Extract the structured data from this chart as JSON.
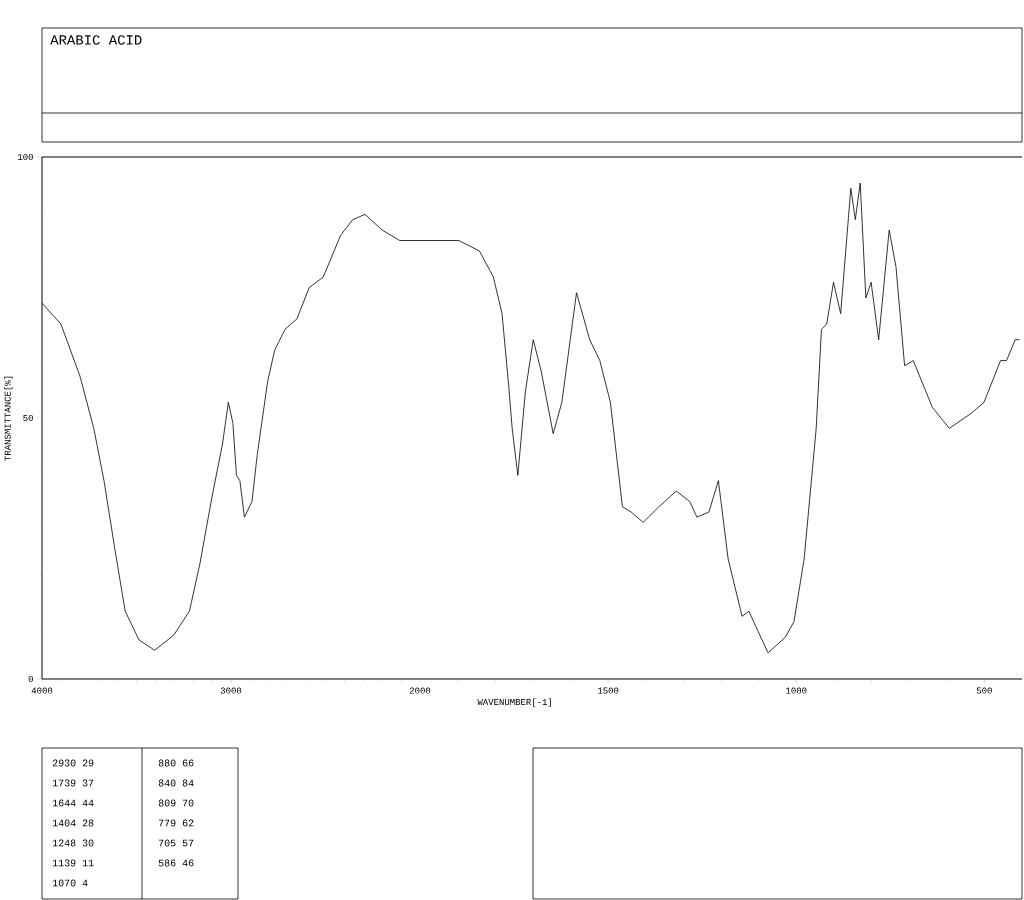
{
  "chart_data": [
    {
      "type": "line",
      "title": "ARABIC ACID",
      "ylabel": "TRANSMITTANCE[%]",
      "x": [
        4000,
        3900,
        3799,
        3726,
        3672,
        3615,
        3560,
        3487,
        3404,
        3303,
        3220,
        3165,
        3100,
        3045,
        3014,
        2990,
        2971,
        2953,
        2929,
        2889,
        2861,
        2806,
        2769,
        2714,
        2651,
        2586,
        2512,
        2420,
        2356,
        2291,
        2200,
        2107,
        2043,
        2000
      ],
      "series": [
        {
          "color": "#000000",
          "values": [
            72,
            68,
            58,
            48,
            38,
            25,
            13,
            7.5,
            5.5,
            8.4,
            13,
            22,
            35,
            45,
            53,
            49,
            39,
            38,
            31,
            34,
            43,
            57,
            63,
            67,
            69,
            75,
            77,
            85,
            88,
            89,
            86,
            84,
            84,
            84
          ]
        }
      ],
      "xlim": [
        4000,
        2000
      ],
      "ylim": [
        0,
        100
      ],
      "xticks": [
        4000,
        3000,
        2000
      ],
      "yticks": [
        0,
        50,
        100
      ],
      "marker": "none",
      "line_style": "solid",
      "annotations": [
        "2930 29",
        "1739 37",
        "1644 44",
        "1404 28",
        "1248 30",
        "1139 11",
        "1070 4",
        "880 66",
        "840 84",
        "809 70",
        "779 62",
        "705 57",
        "586 46"
      ]
    },
    {
      "type": "line",
      "xlabel": "WAVENUMBER[-1]",
      "x": [
        2000,
        1989,
        1897,
        1842,
        1805,
        1782,
        1764,
        1755,
        1740,
        1720,
        1699,
        1678,
        1646,
        1623,
        1584,
        1549,
        1522,
        1494,
        1462,
        1439,
        1407,
        1365,
        1319,
        1283,
        1264,
        1232,
        1207,
        1181,
        1144,
        1126,
        1107,
        1075,
        1029,
        1006,
        979,
        947,
        933,
        919,
        901,
        882,
        855,
        843,
        830,
        815,
        801,
        781,
        753,
        735,
        712,
        689,
        638,
        593,
        533,
        501,
        457,
        441,
        418,
        407
      ],
      "series": [
        {
          "color": "#000000",
          "values": [
            84,
            84,
            84,
            82,
            77,
            70,
            56,
            48,
            39,
            55,
            65,
            59,
            47,
            53,
            74,
            65,
            61,
            53,
            33,
            32,
            30,
            33,
            36,
            34,
            31,
            32,
            38,
            23,
            12,
            13,
            10,
            5,
            8,
            11,
            23,
            48,
            67,
            68,
            76,
            70,
            94,
            88,
            95,
            73,
            76,
            65,
            86,
            79,
            60,
            61,
            52,
            48,
            51,
            53,
            61,
            61,
            65,
            65
          ]
        }
      ],
      "xlim": [
        2000,
        400
      ],
      "ylim": [
        0,
        100
      ],
      "xticks": [
        1500,
        1000,
        500
      ],
      "tick_labels": "x",
      "marker": "none",
      "line_style": "solid"
    }
  ]
}
